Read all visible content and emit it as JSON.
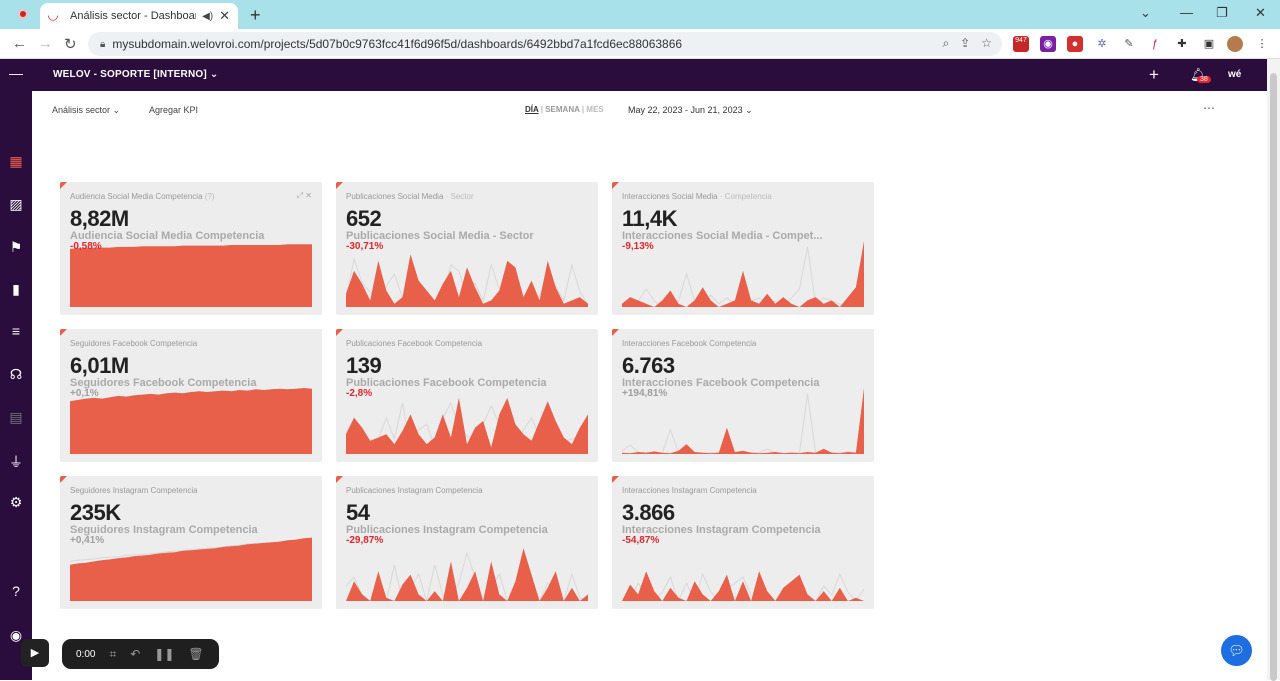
{
  "browser": {
    "tab_title": "Análisis sector - Dashboard",
    "url": "mysubdomain.welovroi.com/projects/5d07b0c9763fcc41f6d96f5d/dashboards/6492bbd7a1fcd6ec88063866",
    "ext_badge": "947"
  },
  "app": {
    "org_name": "WELOV - SOPORTE [INTERNO]",
    "notif_count": "38",
    "logo": "wé"
  },
  "toolbar": {
    "dashboard_select": "Análisis sector",
    "add_kpi": "Agregar KPI",
    "period_day": "DÍA",
    "period_week": "SEMANA",
    "period_month": "MES",
    "sep": "|",
    "date_range": "May 22, 2023 - Jun 21, 2023"
  },
  "colors": {
    "accent": "#e8604a",
    "negative": "#e3262b",
    "positive": "#9e9e9e",
    "header": "#2a0d3d"
  },
  "cards": [
    {
      "title": "Audiencia Social Media Competencia",
      "title_suffix": "(?)",
      "value": "8,82M",
      "label": "Audiencia Social Media Competencia",
      "delta": "-0,58%",
      "trend": "negative"
    },
    {
      "title": "Publicaciones Social Media",
      "title_suffix": "· Sector",
      "value": "652",
      "label": "Publicaciones Social Media - Sector",
      "delta": "-30,71%",
      "trend": "negative"
    },
    {
      "title": "Interacciones Social Media",
      "title_suffix": "· Competencia",
      "value": "11,4K",
      "label": "Interacciones Social Media - Compet...",
      "delta": "-9,13%",
      "trend": "negative"
    },
    {
      "title": "Seguidores Facebook Competencia",
      "title_suffix": "",
      "value": "6,01M",
      "label": "Seguidores Facebook Competencia",
      "delta": "+0,1%",
      "trend": "positive"
    },
    {
      "title": "Publicaciones Facebook Competencia",
      "title_suffix": "",
      "value": "139",
      "label": "Publicaciones Facebook Competencia",
      "delta": "-2,8%",
      "trend": "negative"
    },
    {
      "title": "Interacciones Facebook Competencia",
      "title_suffix": "",
      "value": "6.763",
      "label": "Interacciones Facebook Competencia",
      "delta": "+194,81%",
      "trend": "positive"
    },
    {
      "title": "Seguidores Instagram Competencia",
      "title_suffix": "",
      "value": "235K",
      "label": "Seguidores Instagram Competencia",
      "delta": "+0,41%",
      "trend": "positive"
    },
    {
      "title": "Publicaciones Instagram Competencia",
      "title_suffix": "",
      "value": "54",
      "label": "Publicaciones Instagram Competencia",
      "delta": "-29,87%",
      "trend": "negative"
    },
    {
      "title": "Interacciones Instagram Competencia",
      "title_suffix": "",
      "value": "3.866",
      "label": "Interacciones Instagram Competencia",
      "delta": "-54,87%",
      "trend": "negative"
    }
  ],
  "sparklines": [
    [
      88,
      89,
      89,
      90,
      90,
      90,
      91,
      91,
      91,
      92,
      92,
      92,
      92,
      92,
      93,
      93,
      93,
      93,
      93,
      93,
      94,
      94,
      94,
      94,
      94,
      94,
      94,
      95,
      95,
      95,
      95
    ],
    [
      20,
      55,
      35,
      10,
      70,
      25,
      5,
      15,
      80,
      40,
      25,
      10,
      35,
      55,
      15,
      60,
      30,
      5,
      10,
      25,
      70,
      60,
      15,
      40,
      10,
      70,
      30,
      5,
      10,
      15,
      5
    ],
    [
      5,
      15,
      10,
      5,
      0,
      10,
      25,
      5,
      0,
      10,
      30,
      10,
      0,
      5,
      10,
      55,
      10,
      5,
      20,
      5,
      15,
      5,
      0,
      10,
      15,
      5,
      10,
      0,
      15,
      30,
      100
    ],
    [
      80,
      82,
      84,
      85,
      84,
      86,
      88,
      87,
      89,
      90,
      91,
      90,
      92,
      93,
      92,
      94,
      95,
      94,
      95,
      96,
      95,
      97,
      96,
      98,
      97,
      98,
      99,
      98,
      99,
      100,
      99
    ],
    [
      30,
      55,
      40,
      20,
      25,
      30,
      15,
      35,
      60,
      30,
      15,
      25,
      60,
      25,
      85,
      15,
      40,
      50,
      10,
      60,
      85,
      45,
      30,
      20,
      50,
      80,
      50,
      25,
      15,
      40,
      60
    ],
    [
      2,
      1,
      3,
      2,
      4,
      2,
      1,
      5,
      15,
      3,
      2,
      1,
      2,
      40,
      3,
      5,
      2,
      1,
      2,
      3,
      1,
      2,
      1,
      3,
      2,
      8,
      2,
      1,
      3,
      2,
      100
    ],
    [
      55,
      57,
      58,
      60,
      62,
      63,
      65,
      66,
      68,
      69,
      70,
      72,
      73,
      74,
      76,
      77,
      78,
      79,
      80,
      82,
      83,
      84,
      86,
      87,
      88,
      89,
      90,
      92,
      93,
      95,
      96
    ],
    [
      0,
      30,
      10,
      0,
      45,
      5,
      0,
      25,
      40,
      10,
      0,
      15,
      0,
      60,
      0,
      20,
      45,
      0,
      60,
      10,
      0,
      30,
      80,
      40,
      0,
      20,
      45,
      0,
      20,
      0,
      10
    ],
    [
      0,
      25,
      10,
      45,
      15,
      0,
      20,
      5,
      0,
      30,
      10,
      0,
      15,
      40,
      0,
      30,
      0,
      45,
      15,
      0,
      20,
      30,
      40,
      10,
      0,
      15,
      0,
      20,
      0,
      5,
      0
    ]
  ],
  "recorder": {
    "time": "0:00"
  }
}
